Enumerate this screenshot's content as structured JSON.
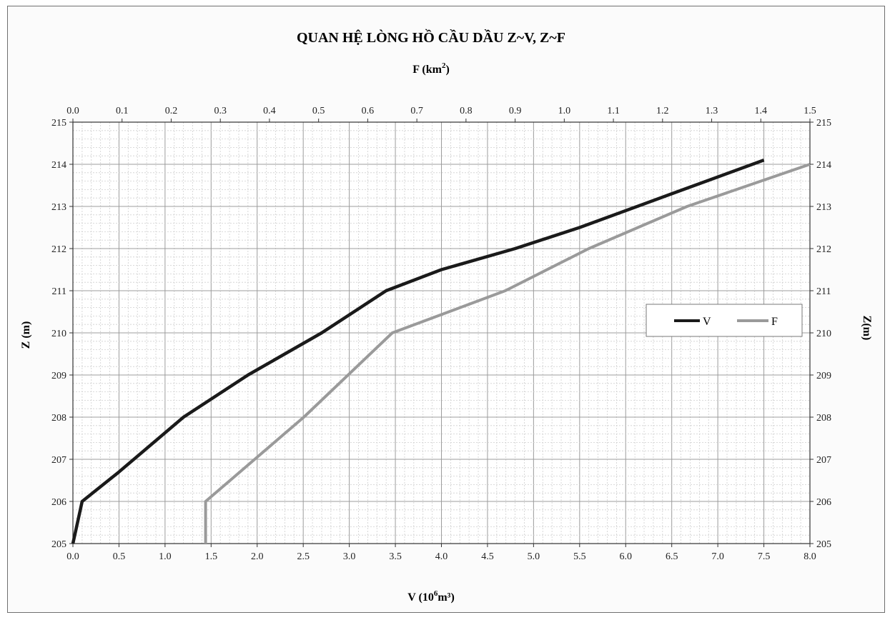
{
  "chart_data": {
    "type": "line",
    "title": "QUAN HỆ LÒNG HỒ CẦU DẦU Z~V, Z~F",
    "top_axis": {
      "label_main": "F (km",
      "label_sup": "2",
      "label_end": ")",
      "range": [
        0.0,
        1.5
      ],
      "ticks": [
        "0.0",
        "0.1",
        "0.2",
        "0.3",
        "0.4",
        "0.5",
        "0.6",
        "0.7",
        "0.8",
        "0.9",
        "1.0",
        "1.1",
        "1.2",
        "1.3",
        "1.4",
        "1.5"
      ]
    },
    "bottom_axis": {
      "label_main": "V (10",
      "label_sup": "6",
      "label_end": "m³)",
      "range": [
        0.0,
        8.0
      ],
      "ticks": [
        "0.0",
        "0.5",
        "1.0",
        "1.5",
        "2.0",
        "2.5",
        "3.0",
        "3.5",
        "4.0",
        "4.5",
        "5.0",
        "5.5",
        "6.0",
        "6.5",
        "7.0",
        "7.5",
        "8.0"
      ]
    },
    "left_axis": {
      "label": "Z (m)",
      "range": [
        205,
        215
      ],
      "ticks": [
        "205",
        "206",
        "207",
        "208",
        "209",
        "210",
        "211",
        "212",
        "213",
        "214",
        "215"
      ]
    },
    "right_axis": {
      "label": "Z(m)",
      "range": [
        205,
        215
      ],
      "ticks": [
        "205",
        "206",
        "207",
        "208",
        "209",
        "210",
        "211",
        "212",
        "213",
        "214",
        "215"
      ]
    },
    "grid": true,
    "legend_position": "middle-right",
    "series": [
      {
        "name": "V",
        "x_axis": "bottom",
        "color": "#1a1a1a",
        "points": [
          [
            0.0,
            205
          ],
          [
            0.1,
            206
          ],
          [
            0.5,
            206.7
          ],
          [
            1.2,
            208
          ],
          [
            1.9,
            209
          ],
          [
            2.7,
            210
          ],
          [
            3.4,
            211
          ],
          [
            4.0,
            211.5
          ],
          [
            4.8,
            212
          ],
          [
            5.5,
            212.5
          ],
          [
            6.5,
            213.3
          ],
          [
            7.5,
            214.1
          ]
        ]
      },
      {
        "name": "F",
        "x_axis": "top",
        "color": "#9a9a9a",
        "points": [
          [
            0.27,
            205
          ],
          [
            0.27,
            206
          ],
          [
            0.47,
            208
          ],
          [
            0.65,
            210
          ],
          [
            0.88,
            211
          ],
          [
            1.05,
            212
          ],
          [
            1.25,
            213
          ],
          [
            1.5,
            214
          ]
        ]
      }
    ]
  }
}
